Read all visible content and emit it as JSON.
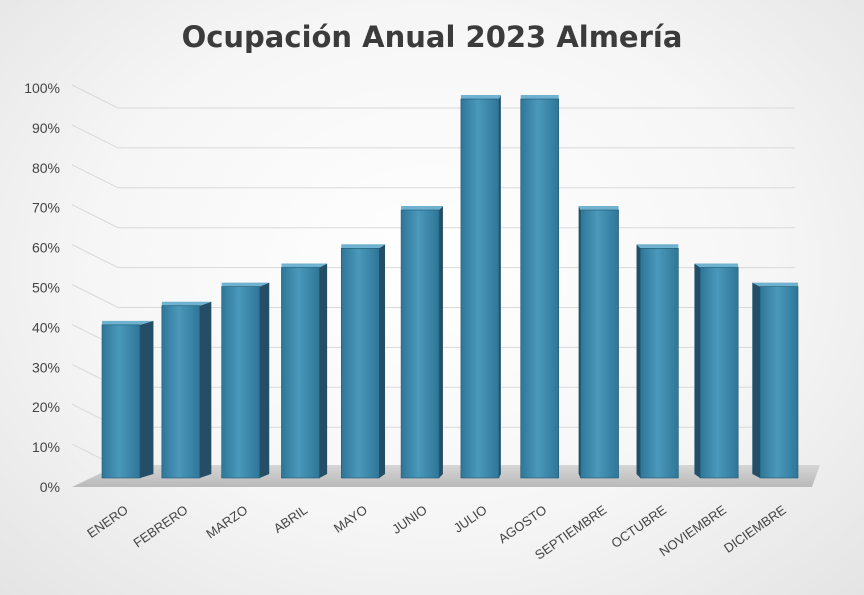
{
  "chart_data": {
    "type": "bar",
    "title": "Ocupación Anual 2023 Almería",
    "categories": [
      "ENERO",
      "FEBRERO",
      "MARZO",
      "ABRIL",
      "MAYO",
      "JUNIO",
      "JULIO",
      "AGOSTO",
      "SEPTIEMBRE",
      "OCTUBRE",
      "NOVIEMBRE",
      "DICIEMBRE"
    ],
    "values": [
      40,
      45,
      50,
      55,
      60,
      70,
      99,
      99,
      70,
      60,
      55,
      50
    ],
    "yticks": [
      "0%",
      "10%",
      "20%",
      "30%",
      "40%",
      "50%",
      "60%",
      "70%",
      "80%",
      "90%",
      "100%"
    ],
    "ylim": [
      0,
      100
    ],
    "grid": true,
    "legend": "none",
    "colors": {
      "front": "#3b86a8",
      "side": "#234e66",
      "top": "#6fb2cf",
      "floor": "#c8c8c8"
    }
  }
}
